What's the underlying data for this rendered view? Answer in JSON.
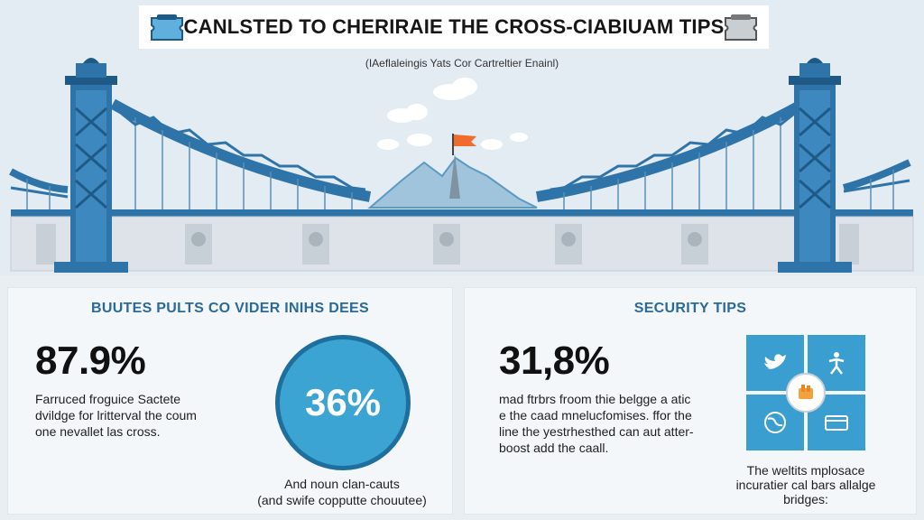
{
  "header": {
    "title": "CANLSTED TO CHERIRAIE THE CROSS-CIABIUAM TIPS",
    "subtitle": "(IAeflaleingis Yats Cor Cartreltier Enainl)"
  },
  "left_panel": {
    "heading": "BUUTES PULTS CO VIDER INIHS DEES",
    "stat": "87.9%",
    "stat_text": [
      "Farruced froguice Sactete",
      "dvildge for lritterval the coum",
      "one nevallet las cross."
    ],
    "circle_value": "36%",
    "circle_caption": [
      "And noun clan-cauts",
      "(and swife copputte chouutee)"
    ]
  },
  "right_panel": {
    "heading": "SECURITY TIPS",
    "stat": "31,8%",
    "stat_text": [
      "mad ftrbrs froom thie belgge a atic",
      "e the caad mnelucfomises. ffor the",
      "line the yestrhesthed can aut atter-",
      "boost add the caall."
    ],
    "grid_caption": [
      "The weltits mplosace",
      "incuratier cal bars allalge",
      "bridges:"
    ]
  },
  "icons": [
    "ticket-icon",
    "bird-icon",
    "person-icon",
    "hand-icon",
    "globe-icon",
    "card-icon"
  ],
  "colors": {
    "accent_blue": "#3a9fd0",
    "bridge_blue": "#2f74a8",
    "heading_blue": "#2a6a9a",
    "flag_orange": "#f06b2d"
  }
}
